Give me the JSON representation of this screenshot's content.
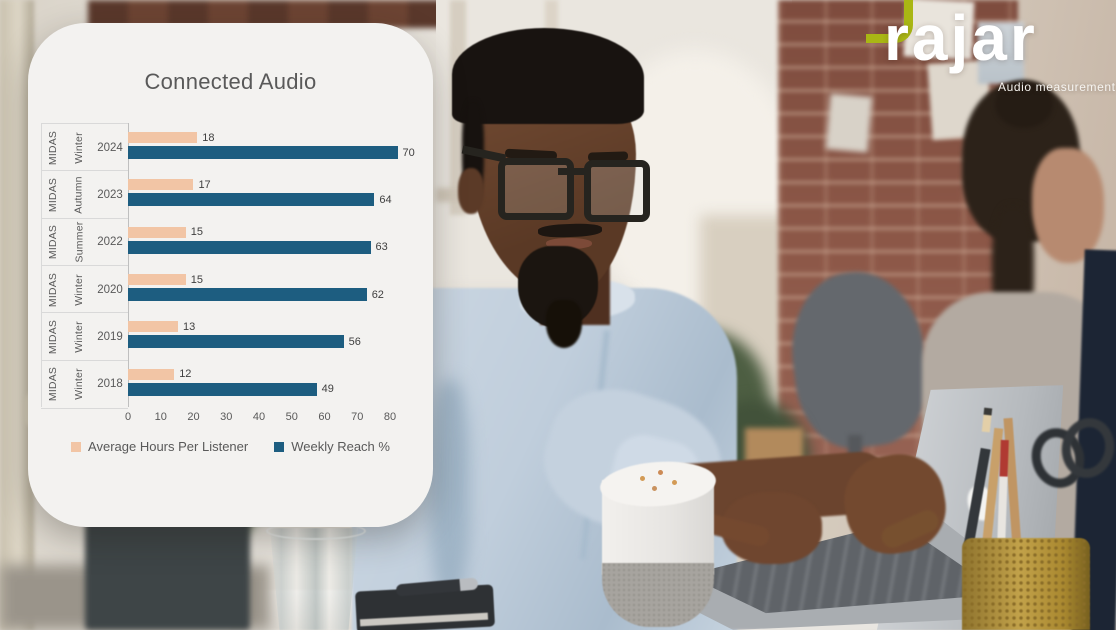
{
  "slide": {
    "title": "Connected Audio"
  },
  "logo": {
    "brand": "rajar",
    "tagline": "Audio measurement",
    "accent_color": "#a9b614",
    "text_color": "#ffffff"
  },
  "chart_data": {
    "type": "bar",
    "orientation": "horizontal",
    "title": "Connected Audio",
    "title_color": "#595959",
    "categories": [
      "MIDAS Winter 2024",
      "MIDAS Autumn 2023",
      "MIDAS Summer 2022",
      "MIDAS Winter 2020",
      "MIDAS Winter 2019",
      "MIDAS Winter 2018"
    ],
    "rows": [
      {
        "survey": "MIDAS",
        "wave": "Winter",
        "year": "2024",
        "hours": 18,
        "reach": 70
      },
      {
        "survey": "MIDAS",
        "wave": "Autumn",
        "year": "2023",
        "hours": 17,
        "reach": 64
      },
      {
        "survey": "MIDAS",
        "wave": "Summer",
        "year": "2022",
        "hours": 15,
        "reach": 63
      },
      {
        "survey": "MIDAS",
        "wave": "Winter",
        "year": "2020",
        "hours": 15,
        "reach": 62
      },
      {
        "survey": "MIDAS",
        "wave": "Winter",
        "year": "2019",
        "hours": 13,
        "reach": 56
      },
      {
        "survey": "MIDAS",
        "wave": "Winter",
        "year": "2018",
        "hours": 12,
        "reach": 49
      }
    ],
    "series": [
      {
        "name": "Average Hours Per Listener",
        "color": "#f2c5a5",
        "values": [
          18,
          17,
          15,
          15,
          13,
          12
        ]
      },
      {
        "name": "Weekly Reach %",
        "color": "#1d5d80",
        "values": [
          70,
          64,
          63,
          62,
          56,
          49
        ]
      }
    ],
    "xlim": [
      0,
      80
    ],
    "xticks": [
      0,
      10,
      20,
      30,
      40,
      50,
      60,
      70,
      80
    ],
    "grid": false,
    "legend_position": "bottom",
    "background": "#f3f2f0"
  }
}
